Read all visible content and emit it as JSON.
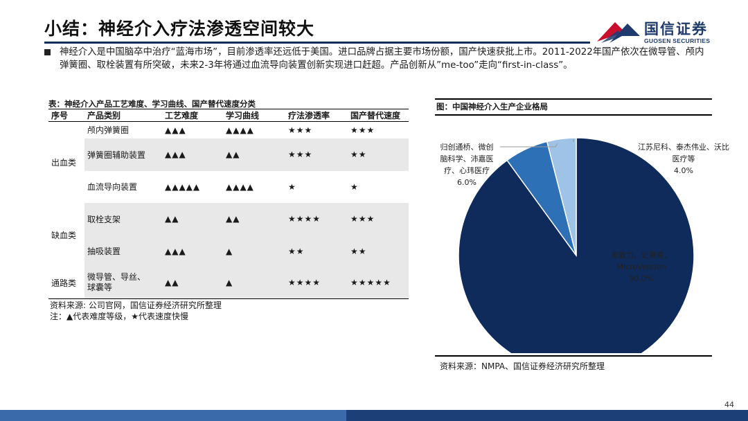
{
  "header": {
    "title": "小结：神经介入疗法渗透空间较大",
    "logo_cn": "国信证券",
    "logo_en": "GUOSEN SECURITIES"
  },
  "summary": "神经介入是中国脑卒中治疗“蓝海市场”，目前渗透率还远低于美国。进口品牌占据主要市场份额，国产快速获批上市。2011-2022年国产依次在微导管、颅内弹簧圈、取栓装置有所突破，未来2-3年将通过血流导向装置创新实现进口赶超。产品创新从”me-too”走向“first-in-class”。",
  "table": {
    "caption": "表：神经介入产品工艺难度、学习曲线、国产替代速度分类",
    "headers": [
      "序号",
      "产品类别",
      "工艺难度",
      "学习曲线",
      "疗法渗透率",
      "国产替代速度"
    ],
    "groups": [
      {
        "name": "出血类",
        "rows": [
          {
            "product": "颅内弹簧圈",
            "difficulty": "▲▲▲",
            "learning": "▲▲▲▲",
            "penetration": "★★★",
            "substitution": "★★★"
          },
          {
            "product": "弹簧圈辅助装置",
            "difficulty": "▲▲▲",
            "learning": "▲▲",
            "penetration": "★★★",
            "substitution": "★★"
          },
          {
            "product": "血流导向装置",
            "difficulty": "▲▲▲▲▲",
            "learning": "▲▲▲▲",
            "penetration": "★",
            "substitution": "★"
          }
        ]
      },
      {
        "name": "缺血类",
        "rows": [
          {
            "product": "取栓支架",
            "difficulty": "▲▲",
            "learning": "▲▲",
            "penetration": "★★★★",
            "substitution": "★★★"
          },
          {
            "product": "抽吸装置",
            "difficulty": "▲▲▲",
            "learning": "▲",
            "penetration": "★★",
            "substitution": "★★"
          }
        ]
      },
      {
        "name": "通路类",
        "rows": [
          {
            "product": "微导管、导丝、球囊等",
            "product_line1": "微导管、导丝、",
            "product_line2": "球囊等",
            "difficulty": "▲▲",
            "learning": "▲",
            "penetration": "★★★★",
            "substitution": "★★★★★"
          }
        ]
      }
    ],
    "source": "资料来源: 公司官网，国信证券经济研究所整理",
    "note": "注：▲代表难度等级，★代表速度快慢"
  },
  "figure": {
    "caption": "图：中国神经介入生产企业格局",
    "source": "资料来源：NMPA、国信证券经济研究所整理"
  },
  "chart_data": {
    "type": "pie",
    "title": "",
    "slices": [
      {
        "label": "美敦力、史赛克、MicroVention",
        "value": 90.0,
        "value_label": "90.0%",
        "color": "#0f2b5b"
      },
      {
        "label": "归创通桥、微创脑科学、沛嘉医疗、心玮医疗",
        "value": 6.0,
        "value_label": "6.0%",
        "color": "#2e70b6"
      },
      {
        "label": "江苏尼科、泰杰伟业、沃比医疗等",
        "value": 4.0,
        "value_label": "4.0%",
        "color": "#9ec3e6"
      }
    ],
    "label_lines": {
      "big": [
        "美敦力、史赛克、",
        "MicroVention",
        "90.0%"
      ],
      "mid": [
        "归创通桥、微创",
        "脑科学、沛嘉医",
        "疗、心玮医疗",
        "6.0%"
      ],
      "small": [
        "江苏尼科、泰杰伟业、沃比",
        "医疗等",
        "4.0%"
      ]
    }
  },
  "page_number": "44"
}
